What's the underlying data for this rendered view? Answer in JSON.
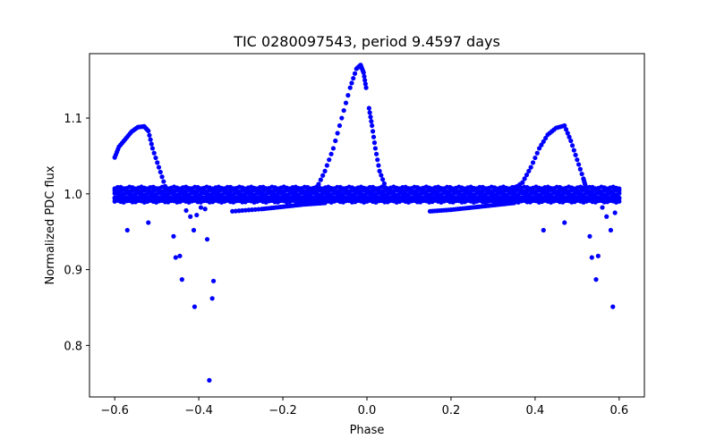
{
  "chart_data": {
    "type": "scatter",
    "title": "TIC 0280097543, period 9.4597 days",
    "xlabel": "Phase",
    "ylabel": "Normalized PDC flux",
    "xlim": [
      -0.66,
      0.66
    ],
    "ylim": [
      0.732,
      1.185
    ],
    "xticks": [
      -0.6,
      -0.4,
      -0.2,
      0.0,
      0.2,
      0.4,
      0.6
    ],
    "xtick_labels": [
      "−0.6",
      "−0.4",
      "−0.2",
      "0.0",
      "0.2",
      "0.4",
      "0.6"
    ],
    "yticks": [
      0.8,
      0.9,
      1.0,
      1.1
    ],
    "ytick_labels": [
      "0.8",
      "0.9",
      "1.0",
      "1.1"
    ],
    "grid": false,
    "marker_color": "#0000ff",
    "series": [
      {
        "name": "",
        "segments": [
          {
            "kind": "band",
            "x_range": [
              -0.6,
              0.6
            ],
            "y_values": [
              0.99,
              0.993,
              0.996,
              1.0,
              1.004,
              1.008
            ]
          },
          {
            "kind": "flare",
            "points": [
              [
                -0.6,
                1.048
              ],
              [
                -0.59,
                1.062
              ],
              [
                -0.575,
                1.072
              ],
              [
                -0.56,
                1.082
              ],
              [
                -0.545,
                1.088
              ],
              [
                -0.53,
                1.089
              ],
              [
                -0.52,
                1.083
              ],
              [
                -0.51,
                1.06
              ],
              [
                -0.495,
                1.035
              ],
              [
                -0.48,
                1.01
              ]
            ]
          },
          {
            "kind": "flare",
            "points": [
              [
                -0.12,
                1.007
              ],
              [
                -0.1,
                1.03
              ],
              [
                -0.08,
                1.06
              ],
              [
                -0.06,
                1.1
              ],
              [
                -0.04,
                1.14
              ],
              [
                -0.025,
                1.165
              ],
              [
                -0.015,
                1.17
              ],
              [
                -0.008,
                1.16
              ],
              [
                -0.002,
                1.14
              ]
            ]
          },
          {
            "kind": "flare",
            "points": [
              [
                0.005,
                1.113
              ],
              [
                0.012,
                1.09
              ],
              [
                0.02,
                1.06
              ],
              [
                0.03,
                1.03
              ],
              [
                0.045,
                1.008
              ]
            ]
          },
          {
            "kind": "flare",
            "points": [
              [
                0.345,
                1.005
              ],
              [
                0.37,
                1.015
              ],
              [
                0.39,
                1.035
              ],
              [
                0.41,
                1.06
              ],
              [
                0.43,
                1.078
              ],
              [
                0.45,
                1.087
              ],
              [
                0.47,
                1.09
              ],
              [
                0.485,
                1.07
              ],
              [
                0.5,
                1.045
              ],
              [
                0.515,
                1.02
              ],
              [
                0.52,
                1.01
              ]
            ]
          },
          {
            "kind": "trail",
            "points": [
              [
                -0.32,
                0.977
              ],
              [
                -0.25,
                0.98
              ],
              [
                -0.2,
                0.983
              ],
              [
                -0.15,
                0.986
              ],
              [
                -0.1,
                0.988
              ]
            ]
          },
          {
            "kind": "trail",
            "points": [
              [
                0.15,
                0.977
              ],
              [
                0.2,
                0.979
              ],
              [
                0.25,
                0.982
              ],
              [
                0.3,
                0.985
              ],
              [
                0.35,
                0.988
              ]
            ]
          }
        ],
        "outliers": [
          [
            -0.57,
            0.952
          ],
          [
            -0.52,
            0.962
          ],
          [
            -0.46,
            0.944
          ],
          [
            -0.455,
            0.916
          ],
          [
            -0.445,
            0.918
          ],
          [
            -0.44,
            0.887
          ],
          [
            -0.43,
            0.978
          ],
          [
            -0.42,
            0.97
          ],
          [
            -0.412,
            0.952
          ],
          [
            -0.41,
            0.851
          ],
          [
            -0.405,
            0.972
          ],
          [
            -0.395,
            0.982
          ],
          [
            -0.385,
            0.98
          ],
          [
            -0.38,
            0.94
          ],
          [
            -0.375,
            0.754
          ],
          [
            -0.368,
            0.862
          ],
          [
            -0.365,
            0.885
          ],
          [
            0.42,
            0.952
          ],
          [
            0.47,
            0.962
          ],
          [
            0.53,
            0.944
          ],
          [
            0.535,
            0.916
          ],
          [
            0.545,
            0.887
          ],
          [
            0.55,
            0.918
          ],
          [
            0.56,
            0.982
          ],
          [
            0.57,
            0.97
          ],
          [
            0.58,
            0.952
          ],
          [
            0.585,
            0.851
          ],
          [
            0.59,
            0.975
          ]
        ]
      }
    ]
  }
}
